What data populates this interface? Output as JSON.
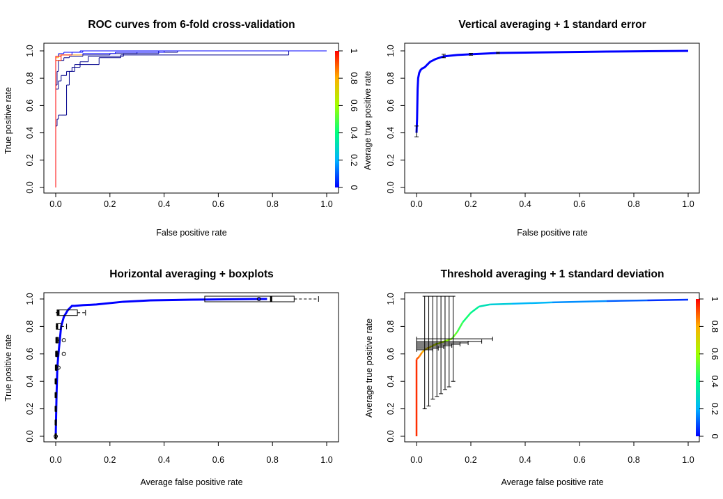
{
  "figure": {
    "panels": [
      {
        "title": "ROC curves from 6-fold cross-validation",
        "xlabel": "False positive rate",
        "ylabel": "True positive rate",
        "colorbar_label": "Average true positive rate"
      },
      {
        "title": "Vertical averaging + 1 standard error",
        "xlabel": "False positive rate",
        "ylabel": ""
      },
      {
        "title": "Horizontal averaging + boxplots",
        "xlabel": "Average false positive rate",
        "ylabel": "True positive rate"
      },
      {
        "title": "Threshold averaging + 1 standard deviation",
        "xlabel": "Average false positive rate",
        "ylabel": "Average true positive rate",
        "colorbar_label": ""
      }
    ]
  },
  "chart_data": [
    {
      "type": "line",
      "title": "ROC curves from 6-fold cross-validation",
      "xlabel": "False positive rate",
      "ylabel": "True positive rate",
      "xlim": [
        0,
        1
      ],
      "ylim": [
        0,
        1
      ],
      "xticks": [
        "0.0",
        "0.2",
        "0.4",
        "0.6",
        "0.8",
        "1.0"
      ],
      "yticks": [
        "0.0",
        "0.2",
        "0.4",
        "0.6",
        "0.8",
        "1.0"
      ],
      "colorbar": {
        "label": "Average true positive rate",
        "ticks": [
          "0",
          "0.2",
          "0.4",
          "0.6",
          "0.8",
          "1"
        ],
        "palette": "rainbow red-to-blue"
      },
      "series": [
        {
          "x": [
            0,
            0,
            0.005,
            0.005,
            0.01,
            0.01,
            0.03,
            0.03,
            0.05,
            0.05,
            0.1,
            0.1,
            0.2,
            0.2,
            0.3,
            0.3,
            0.45,
            0.45,
            1.0
          ],
          "y": [
            0,
            0.75,
            0.75,
            0.85,
            0.85,
            0.93,
            0.93,
            0.95,
            0.95,
            0.96,
            0.96,
            0.97,
            0.97,
            0.98,
            0.98,
            0.99,
            0.99,
            1.0,
            1.0
          ]
        },
        {
          "x": [
            0,
            0,
            0.01,
            0.01,
            0.02,
            0.02,
            0.04,
            0.04,
            0.06,
            0.06,
            0.09,
            0.09,
            0.12,
            0.12,
            0.25,
            0.25,
            0.38,
            0.38,
            1.0
          ],
          "y": [
            0,
            0.72,
            0.72,
            0.78,
            0.78,
            0.82,
            0.82,
            0.85,
            0.85,
            0.88,
            0.88,
            0.92,
            0.92,
            0.96,
            0.96,
            0.98,
            0.98,
            1.0,
            1.0
          ]
        },
        {
          "x": [
            0,
            0,
            0.005,
            0.005,
            0.01,
            0.01,
            0.02,
            0.02,
            0.04,
            0.04,
            0.05,
            0.05,
            0.07,
            0.07,
            0.16,
            0.16,
            0.24,
            0.24,
            0.86,
            0.86,
            1.0
          ],
          "y": [
            0,
            0.45,
            0.45,
            0.5,
            0.5,
            0.53,
            0.53,
            0.53,
            0.53,
            0.75,
            0.75,
            0.85,
            0.85,
            0.9,
            0.9,
            0.95,
            0.95,
            0.97,
            0.97,
            1.0,
            1.0
          ]
        },
        {
          "x": [
            0,
            0,
            0.01,
            0.01,
            0.03,
            0.03,
            0.1,
            0.1,
            0.22,
            0.22,
            0.4,
            0.4,
            1.0
          ],
          "y": [
            0,
            0.95,
            0.95,
            0.97,
            0.97,
            0.97,
            0.97,
            0.98,
            0.98,
            0.99,
            0.99,
            1.0,
            1.0
          ]
        },
        {
          "x": [
            0,
            0,
            0.02,
            0.02,
            0.06,
            0.06,
            0.09,
            0.09,
            1.0
          ],
          "y": [
            0,
            0.93,
            0.93,
            0.97,
            0.97,
            0.99,
            0.99,
            1.0,
            1.0
          ]
        },
        {
          "x": [
            0,
            0,
            0.01,
            0.01,
            0.03,
            0.03,
            0.1,
            0.1,
            1.0
          ],
          "y": [
            0,
            0.96,
            0.96,
            0.98,
            0.98,
            0.99,
            0.99,
            1.0,
            1.0
          ]
        }
      ]
    },
    {
      "type": "line",
      "title": "Vertical averaging + 1 standard error",
      "xlabel": "False positive rate",
      "ylabel": "",
      "xlim": [
        0,
        1
      ],
      "ylim": [
        0,
        1
      ],
      "xticks": [
        "0.0",
        "0.2",
        "0.4",
        "0.6",
        "0.8",
        "1.0"
      ],
      "yticks": [
        "0.0",
        "0.2",
        "0.4",
        "0.6",
        "0.8",
        "1.0"
      ],
      "series": [
        {
          "x": [
            0,
            0.002,
            0.004,
            0.006,
            0.01,
            0.015,
            0.02,
            0.03,
            0.04,
            0.05,
            0.07,
            0.1,
            0.15,
            0.2,
            0.3,
            0.5,
            0.7,
            1.0
          ],
          "y": [
            0.4,
            0.5,
            0.72,
            0.8,
            0.84,
            0.86,
            0.87,
            0.88,
            0.9,
            0.92,
            0.94,
            0.96,
            0.97,
            0.975,
            0.985,
            0.99,
            0.995,
            1.0
          ]
        }
      ],
      "error_bars": [
        {
          "x": 0,
          "low": 0.37,
          "high": 0.45
        },
        {
          "x": 0.1,
          "low": 0.95,
          "high": 0.975
        },
        {
          "x": 0.2,
          "low": 0.968,
          "high": 0.982
        },
        {
          "x": 0.3,
          "low": 0.98,
          "high": 0.99
        }
      ]
    },
    {
      "type": "line",
      "title": "Horizontal averaging + boxplots",
      "xlabel": "Average false positive rate",
      "ylabel": "True positive rate",
      "xlim": [
        0,
        1
      ],
      "ylim": [
        0,
        1
      ],
      "xticks": [
        "0.0",
        "0.2",
        "0.4",
        "0.6",
        "0.8",
        "1.0"
      ],
      "yticks": [
        "0.0",
        "0.2",
        "0.4",
        "0.6",
        "0.8",
        "1.0"
      ],
      "series": [
        {
          "x": [
            0,
            0.003,
            0.006,
            0.01,
            0.015,
            0.02,
            0.03,
            0.045,
            0.06,
            0.07,
            0.1,
            0.15,
            0.25,
            0.35,
            0.5,
            0.75,
            0.78
          ],
          "y": [
            0,
            0.3,
            0.5,
            0.6,
            0.7,
            0.8,
            0.87,
            0.92,
            0.95,
            0.95,
            0.955,
            0.96,
            0.98,
            0.99,
            0.995,
            1.0,
            1.0
          ]
        }
      ],
      "boxplots": [
        {
          "y": 1.0,
          "whisker_low": 0.55,
          "q1": 0.55,
          "median": 0.795,
          "q3": 0.88,
          "whisker_high": 0.97,
          "outliers": [
            0.75
          ]
        },
        {
          "y": 0.9,
          "whisker_low": 0.0,
          "q1": 0.005,
          "median": 0.01,
          "q3": 0.08,
          "whisker_high": 0.11,
          "outliers": []
        },
        {
          "y": 0.8,
          "whisker_low": 0.0,
          "q1": 0.002,
          "median": 0.005,
          "q3": 0.02,
          "whisker_high": 0.04,
          "outliers": []
        },
        {
          "y": 0.7,
          "whisker_low": 0.0,
          "q1": 0.001,
          "median": 0.003,
          "q3": 0.008,
          "whisker_high": 0.012,
          "outliers": [
            0.03
          ]
        },
        {
          "y": 0.6,
          "whisker_low": 0.0,
          "q1": 0.001,
          "median": 0.002,
          "q3": 0.006,
          "whisker_high": 0.01,
          "outliers": [
            0.03
          ]
        },
        {
          "y": 0.5,
          "whisker_low": 0.0,
          "q1": 0.0,
          "median": 0.001,
          "q3": 0.004,
          "whisker_high": 0.008,
          "outliers": [
            0.01
          ]
        },
        {
          "y": 0.4,
          "whisker_low": 0.0,
          "q1": 0.0,
          "median": 0.0,
          "q3": 0.002,
          "whisker_high": 0.003,
          "outliers": []
        },
        {
          "y": 0.3,
          "whisker_low": 0.0,
          "q1": 0.0,
          "median": 0.0,
          "q3": 0.002,
          "whisker_high": 0.003,
          "outliers": []
        },
        {
          "y": 0.2,
          "whisker_low": 0.0,
          "q1": 0.0,
          "median": 0.0,
          "q3": 0.001,
          "whisker_high": 0.002,
          "outliers": []
        },
        {
          "y": 0.1,
          "whisker_low": 0.0,
          "q1": 0.0,
          "median": 0.0,
          "q3": 0.001,
          "whisker_high": 0.002,
          "outliers": []
        },
        {
          "y": 0.0,
          "whisker_low": 0.0,
          "q1": 0.0,
          "median": 0.0,
          "q3": 0.0,
          "whisker_high": 0.0,
          "outliers": [
            0.0
          ]
        }
      ]
    },
    {
      "type": "line",
      "title": "Threshold averaging + 1 standard deviation",
      "xlabel": "Average false positive rate",
      "ylabel": "Average true positive rate",
      "xlim": [
        0,
        1
      ],
      "ylim": [
        0,
        1
      ],
      "xticks": [
        "0.0",
        "0.2",
        "0.4",
        "0.6",
        "0.8",
        "1.0"
      ],
      "yticks": [
        "0.0",
        "0.2",
        "0.4",
        "0.6",
        "0.8",
        "1.0"
      ],
      "colorbar": {
        "label": "",
        "ticks": [
          "0",
          "0.2",
          "0.4",
          "0.6",
          "0.8",
          "1"
        ],
        "palette": "rainbow red-to-blue"
      },
      "series": [
        {
          "x": [
            0,
            0,
            0.01,
            0.02,
            0.03,
            0.05,
            0.07,
            0.1,
            0.13,
            0.15,
            0.17,
            0.2,
            0.23,
            0.27,
            0.35,
            0.5,
            0.7,
            0.85,
            1.0
          ],
          "y": [
            0,
            0.56,
            0.58,
            0.61,
            0.63,
            0.65,
            0.67,
            0.69,
            0.71,
            0.76,
            0.83,
            0.9,
            0.945,
            0.96,
            0.965,
            0.975,
            0.985,
            0.99,
            0.995
          ]
        }
      ],
      "error_bars": [
        {
          "x": 0.03,
          "y": 0.63,
          "x_low": 0.0,
          "x_high": 0.06,
          "y_low": 0.2,
          "y_high": 1.02
        },
        {
          "x": 0.045,
          "y": 0.64,
          "x_low": 0.0,
          "x_high": 0.08,
          "y_low": 0.22,
          "y_high": 1.02
        },
        {
          "x": 0.06,
          "y": 0.65,
          "x_low": 0.0,
          "x_high": 0.1,
          "y_low": 0.27,
          "y_high": 1.02
        },
        {
          "x": 0.075,
          "y": 0.66,
          "x_low": 0.0,
          "x_high": 0.13,
          "y_low": 0.29,
          "y_high": 1.02
        },
        {
          "x": 0.09,
          "y": 0.67,
          "x_low": 0.0,
          "x_high": 0.16,
          "y_low": 0.31,
          "y_high": 1.02
        },
        {
          "x": 0.105,
          "y": 0.68,
          "x_low": 0.0,
          "x_high": 0.19,
          "y_low": 0.34,
          "y_high": 1.02
        },
        {
          "x": 0.12,
          "y": 0.69,
          "x_low": 0.0,
          "x_high": 0.24,
          "y_low": 0.36,
          "y_high": 1.02
        },
        {
          "x": 0.135,
          "y": 0.71,
          "x_low": 0.0,
          "x_high": 0.28,
          "y_low": 0.4,
          "y_high": 1.02
        }
      ]
    }
  ]
}
